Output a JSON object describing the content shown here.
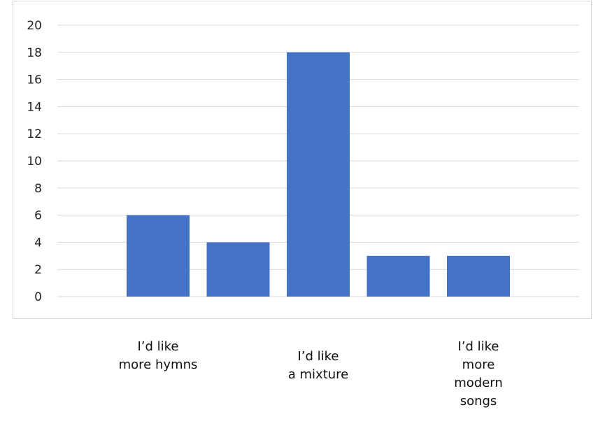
{
  "chart_data": {
    "type": "bar",
    "categories": [
      "I’d like\nmore hymns",
      "",
      "I’d like\na mixture",
      "",
      "I’d like\nmore\nmodern\nsongs"
    ],
    "values": [
      6,
      4,
      18,
      3,
      3
    ],
    "title": "",
    "xlabel": "",
    "ylabel": "",
    "ylim": [
      0,
      20
    ],
    "yticks": [
      0,
      2,
      4,
      6,
      8,
      10,
      12,
      14,
      16,
      18,
      20
    ],
    "grid": true,
    "legend": "none",
    "bar_color": "#4472c4",
    "grid_color": "#d9d9d9"
  }
}
